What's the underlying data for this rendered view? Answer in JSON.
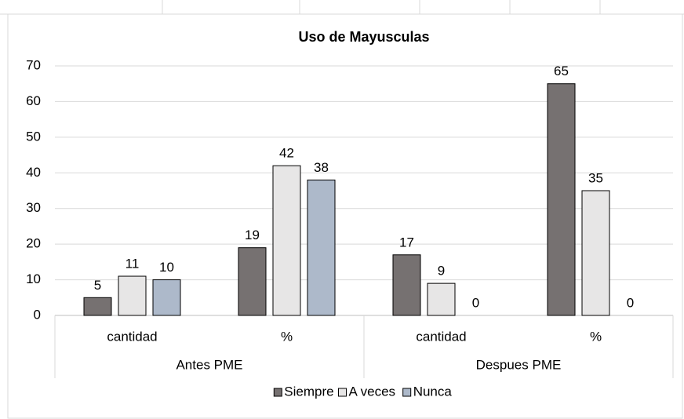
{
  "chart_data": {
    "type": "bar",
    "title": "Uso de Mayusculas",
    "categories": [
      "cantidad",
      "%",
      "cantidad",
      "%"
    ],
    "groups": [
      "Antes PME",
      "Despues PME"
    ],
    "series": [
      {
        "name": "Siempre",
        "color": "#767171",
        "values": [
          5,
          19,
          17,
          65
        ]
      },
      {
        "name": "A veces",
        "color": "#e7e6e6",
        "values": [
          11,
          42,
          9,
          35
        ]
      },
      {
        "name": "Nunca",
        "color": "#adb9ca",
        "values": [
          10,
          38,
          0,
          0
        ]
      }
    ],
    "ylim": [
      0,
      70
    ],
    "yticks": [
      0,
      10,
      20,
      30,
      40,
      50,
      60,
      70
    ],
    "grid": true,
    "legend": "bottom"
  }
}
